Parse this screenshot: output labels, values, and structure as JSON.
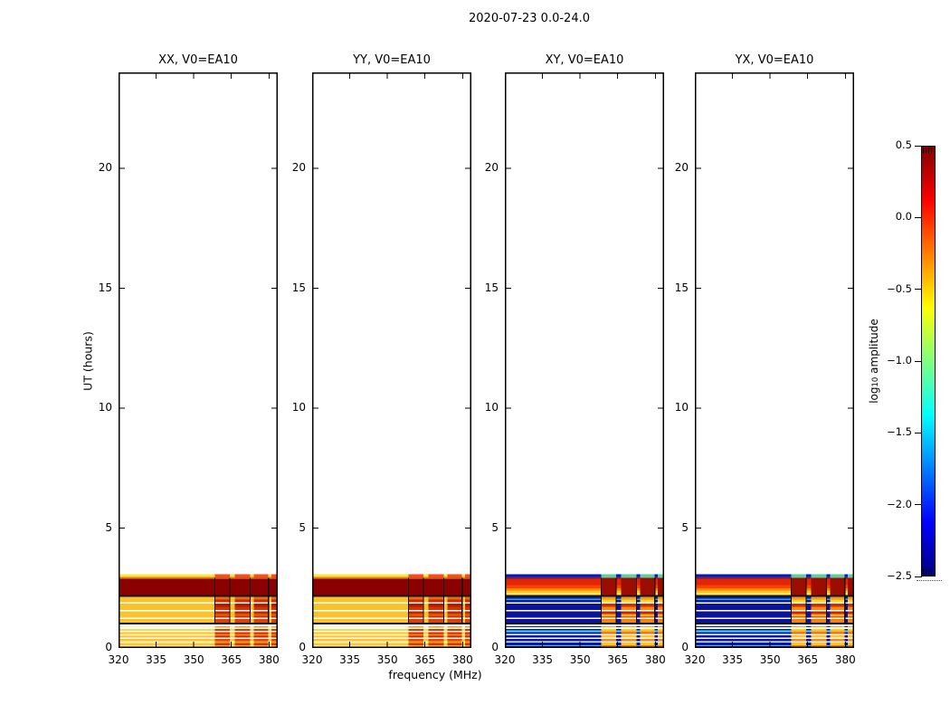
{
  "chart_data": {
    "type": "heatmap",
    "title": "2020-07-23 0.0-24.0",
    "xlabel": "frequency (MHz)",
    "ylabel": "UT (hours)",
    "xlim": [
      320,
      383.5
    ],
    "ylim": [
      0,
      24
    ],
    "x_ticks": [
      320,
      335,
      350,
      365,
      380
    ],
    "y_ticks": [
      0,
      5,
      10,
      15,
      20
    ],
    "grid": false,
    "panels": [
      {
        "pol": "XX",
        "title": "XX, V0=EA10",
        "style": "warm"
      },
      {
        "pol": "YY",
        "title": "YY, V0=EA10",
        "style": "warm"
      },
      {
        "pol": "XY",
        "title": "XY, V0=EA10",
        "style": "cool"
      },
      {
        "pol": "YX",
        "title": "YX, V0=EA10",
        "style": "cool"
      }
    ],
    "colorbar": {
      "label_prefix": "log",
      "label_sub": "10",
      "label_suffix": " amplitude",
      "ticks": [
        0.5,
        0.0,
        -0.5,
        -1.0,
        -1.5,
        -2.0,
        -2.5
      ],
      "tick_labels": [
        "0.5",
        "0.0",
        "−0.5",
        "−1.0",
        "−1.5",
        "−2.0",
        "−2.5"
      ],
      "colormap": "jet",
      "gradient_top_to_bottom": [
        "#800000",
        "#ff0000",
        "#ffff00",
        "#00ffff",
        "#0000ff",
        "#000080"
      ],
      "gradient_stops_pct": [
        0,
        12.5,
        37.5,
        62.5,
        87.5,
        100
      ]
    },
    "texture": {
      "comment_units": "strips/column_rows are [UT_hi_hours, UT_lo_hours, color]; data only below UT 3.1 h",
      "t_top": 3.08,
      "white_stripes": [
        [
          1.9,
          1.84
        ],
        [
          1.58,
          1.52
        ],
        [
          1.27,
          1.21
        ]
      ],
      "columns_mhz": [
        [
          358.4,
          364.4
        ],
        [
          366.4,
          372.5
        ],
        [
          374.0,
          379.8
        ],
        [
          380.9,
          383.5
        ]
      ],
      "vlines_mhz": [
        358.4,
        364.4,
        372.5,
        379.8
      ],
      "vline_trange": [
        2.93,
        1.05
      ],
      "styles": {
        "warm": {
          "left_edge": [
            2.13,
            1.05,
            "#b8e05c"
          ],
          "strips": [
            [
              3.08,
              2.98,
              "#ffe63c"
            ],
            [
              2.98,
              2.93,
              "#f6b22a"
            ],
            [
              2.93,
              2.87,
              "#c24a0d"
            ],
            [
              2.87,
              2.21,
              "#8b0000"
            ],
            [
              2.21,
              2.13,
              "#18120a"
            ],
            [
              2.13,
              1.05,
              "#fbc32b"
            ],
            [
              1.05,
              0.98,
              "#181818"
            ],
            [
              0.98,
              0.9,
              "#ffffff"
            ],
            [
              0.9,
              0.85,
              "#fdf3cd"
            ],
            [
              0.85,
              0.79,
              "#ffffff"
            ],
            [
              0.79,
              0.72,
              "#ffd84a"
            ],
            [
              0.72,
              0.66,
              "#ffffff"
            ],
            [
              0.66,
              0.58,
              "#fcc22e"
            ],
            [
              0.58,
              0.51,
              "#fff3b0"
            ],
            [
              0.51,
              0.43,
              "#fbc32b"
            ],
            [
              0.43,
              0.37,
              "#ffffff"
            ],
            [
              0.37,
              0.28,
              "#fcc22e"
            ],
            [
              0.28,
              0.21,
              "#fff7c8"
            ],
            [
              0.21,
              0.12,
              "#fbc92f"
            ],
            [
              0.12,
              0.06,
              "#ffe9a0"
            ],
            [
              0.06,
              0.0,
              "#f6bc27"
            ]
          ],
          "column_rows": [
            [
              3.08,
              2.93,
              "#ee5022"
            ],
            [
              2.13,
              2.02,
              "#e8690e"
            ],
            [
              2.02,
              1.91,
              "#cc2b00"
            ],
            [
              1.84,
              1.72,
              "#b81800"
            ],
            [
              1.72,
              1.59,
              "#d43500"
            ],
            [
              1.52,
              1.43,
              "#c22400"
            ],
            [
              1.43,
              1.33,
              "#e05500"
            ],
            [
              1.33,
              1.22,
              "#cc2b00"
            ],
            [
              1.21,
              1.05,
              "#d8410a"
            ],
            [
              0.9,
              0.85,
              "#f4a21a"
            ],
            [
              0.79,
              0.72,
              "#e03a00"
            ],
            [
              0.66,
              0.58,
              "#d43000"
            ],
            [
              0.58,
              0.51,
              "#f08020"
            ],
            [
              0.51,
              0.43,
              "#cc2a00"
            ],
            [
              0.37,
              0.28,
              "#e04a00"
            ],
            [
              0.28,
              0.21,
              "#f0a026"
            ],
            [
              0.21,
              0.12,
              "#d83500"
            ],
            [
              0.12,
              0.06,
              "#f0b030"
            ],
            [
              0.06,
              0.0,
              "#b81800"
            ]
          ]
        },
        "cool": {
          "strips": [
            [
              3.08,
              2.98,
              "#0c18a8"
            ],
            [
              2.98,
              2.93,
              "#1430c0"
            ],
            [
              2.93,
              2.86,
              "#c81602"
            ],
            [
              2.86,
              2.62,
              "#e62404"
            ],
            [
              2.62,
              2.5,
              "#ee4602"
            ],
            [
              2.5,
              2.4,
              "#f87e06"
            ],
            [
              2.4,
              2.31,
              "#ffc41e"
            ],
            [
              2.31,
              2.21,
              "#ffe96a"
            ],
            [
              2.21,
              2.13,
              "#14140c"
            ],
            [
              2.13,
              2.06,
              "#0c16a2"
            ],
            [
              2.06,
              2.0,
              "#19b0d8"
            ],
            [
              2.0,
              1.05,
              "#0b139b"
            ],
            [
              1.05,
              0.98,
              "#121212"
            ],
            [
              0.98,
              0.91,
              "#ffffff"
            ],
            [
              0.91,
              0.86,
              "#0d1da8"
            ],
            [
              0.86,
              0.8,
              "#ffffff"
            ],
            [
              0.8,
              0.74,
              "#0d1da8"
            ],
            [
              0.74,
              0.66,
              "#38dce8"
            ],
            [
              0.66,
              0.59,
              "#0d1da8"
            ],
            [
              0.59,
              0.53,
              "#ffffff"
            ],
            [
              0.53,
              0.44,
              "#0c18a2"
            ],
            [
              0.44,
              0.38,
              "#ffffff"
            ],
            [
              0.38,
              0.28,
              "#0c18a2"
            ],
            [
              0.28,
              0.23,
              "#d8f2fc"
            ],
            [
              0.23,
              0.12,
              "#0c18a2"
            ],
            [
              0.12,
              0.07,
              "#2fc8e0"
            ],
            [
              0.07,
              0.0,
              "#0a129b"
            ]
          ],
          "column_rows": [
            [
              3.08,
              2.93,
              "#5ecf9e"
            ],
            [
              2.93,
              2.21,
              "#9c0c00"
            ],
            [
              2.13,
              2.02,
              "#f59a16"
            ],
            [
              2.02,
              1.91,
              "#ffd22e"
            ],
            [
              1.84,
              1.71,
              "#d42a00"
            ],
            [
              1.71,
              1.59,
              "#f88a10"
            ],
            [
              1.52,
              1.42,
              "#cc2400"
            ],
            [
              1.42,
              1.33,
              "#ffb41e"
            ],
            [
              1.33,
              1.22,
              "#e85500"
            ],
            [
              1.21,
              1.05,
              "#f0820e"
            ],
            [
              0.91,
              0.86,
              "#f8a61a"
            ],
            [
              0.8,
              0.74,
              "#ffd22e"
            ],
            [
              0.74,
              0.66,
              "#f8b024"
            ],
            [
              0.66,
              0.59,
              "#ee6a06"
            ],
            [
              0.53,
              0.44,
              "#ffc62a"
            ],
            [
              0.38,
              0.28,
              "#f08a12"
            ],
            [
              0.23,
              0.12,
              "#ffc62a"
            ],
            [
              0.12,
              0.0,
              "#ee7a0a"
            ]
          ]
        }
      }
    }
  }
}
